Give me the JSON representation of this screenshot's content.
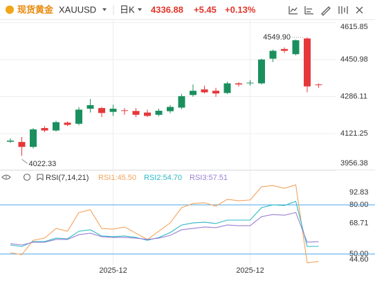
{
  "header": {
    "name": "现货黄金",
    "symbol": "XAUUSD",
    "period": "日K",
    "price": 4336.88,
    "change": "+5.45",
    "change_pct": "+0.13%"
  },
  "chart_data": [
    {
      "type": "candlestick",
      "categories": [
        null,
        null,
        null,
        null,
        null,
        null,
        null,
        null,
        null,
        "2025-12",
        null,
        null,
        null,
        null,
        null,
        null,
        null,
        null,
        null,
        null,
        null,
        "2025-12",
        null,
        null,
        null,
        null,
        null,
        null
      ],
      "open": [
        4085,
        4084,
        4062,
        4146,
        4135,
        4170,
        4165,
        4232,
        4235,
        4218,
        4225,
        4222,
        4215,
        4205,
        4221,
        4237,
        4293,
        4318,
        4312,
        4302,
        4345,
        4345,
        4345,
        4455,
        4498,
        4475,
        4545,
        4340
      ],
      "high": [
        4100,
        4106,
        4146,
        4155,
        4178,
        4175,
        4240,
        4275,
        4240,
        4250,
        4235,
        4235,
        4228,
        4232,
        4248,
        4298,
        4340,
        4335,
        4325,
        4352,
        4350,
        4360,
        4455,
        4495,
        4505,
        4540,
        4549.9,
        4345
      ],
      "low": [
        4080,
        4022.33,
        4055,
        4128,
        4130,
        4155,
        4158,
        4215,
        4195,
        4200,
        4205,
        4195,
        4195,
        4198,
        4212,
        4230,
        4285,
        4300,
        4285,
        4298,
        4330,
        4335,
        4340,
        4440,
        4480,
        4470,
        4305,
        4325
      ],
      "close": [
        4090,
        4062,
        4140,
        4135,
        4172,
        4160,
        4228,
        4248,
        4213,
        4232,
        4222,
        4205,
        4200,
        4223,
        4240,
        4288,
        4312,
        4305,
        4300,
        4345,
        4340,
        4348,
        4451,
        4490,
        4490,
        4537,
        4331.43,
        4336.88
      ],
      "up_color": "#1b8f5e",
      "down_color": "#e5383b",
      "ylim": [
        3956.38,
        4630
      ],
      "yticks": [
        4615.85,
        4450.98,
        4286.11,
        4121.25,
        3956.38
      ],
      "grid": true,
      "annotations": [
        {
          "text": "4549.90",
          "value": 4549.9,
          "kind": "high"
        },
        {
          "text": "4022.33",
          "value": 4022.33,
          "kind": "low"
        }
      ]
    },
    {
      "type": "line",
      "title": "RSI(7,14,21)",
      "categories": [
        null,
        null,
        null,
        null,
        null,
        null,
        null,
        null,
        null,
        "2025-12",
        null,
        null,
        null,
        null,
        null,
        null,
        null,
        null,
        null,
        null,
        null,
        "2025-12",
        null,
        null,
        null,
        null,
        null,
        null
      ],
      "series": [
        {
          "name": "RSI1:45.50",
          "color": "#f3a25b",
          "values": [
            50.8,
            49.6,
            58.4,
            59.7,
            65.6,
            63.9,
            75.3,
            77,
            65.6,
            65.2,
            66.5,
            62.7,
            58.9,
            63.9,
            69,
            78.3,
            80.8,
            81.3,
            79.2,
            83.4,
            82.5,
            83,
            91,
            91.8,
            90.1,
            92.2,
            44.6,
            45.5
          ]
        },
        {
          "name": "RSI2:54.70",
          "color": "#2bb8c6",
          "values": [
            55.5,
            54.6,
            57.6,
            57.6,
            59.7,
            59.3,
            63.9,
            64.8,
            61,
            60.6,
            61,
            60.1,
            58.4,
            60.1,
            63.1,
            67.7,
            69,
            69.4,
            68.6,
            70.7,
            70.7,
            70.7,
            78.3,
            80,
            79.6,
            82.1,
            54.6,
            54.7
          ]
        },
        {
          "name": "RSI3:57.51",
          "color": "#9a7fd2",
          "values": [
            56.3,
            55.5,
            57.2,
            57.2,
            58.9,
            58.9,
            61.8,
            62.7,
            60.6,
            60.1,
            60.1,
            59.7,
            58.9,
            59.7,
            61.4,
            64.8,
            65.6,
            66.5,
            66.1,
            67.7,
            67.3,
            67.3,
            72.8,
            74.1,
            73.7,
            75.3,
            57.2,
            57.51
          ]
        }
      ],
      "ylim": [
        44.6,
        92.83
      ],
      "yticks": [
        92.83,
        {
          "value": 80,
          "label": "80.00"
        },
        68.71,
        {
          "value": 50,
          "label": "50.00"
        },
        {
          "value": 44.6,
          "label": "44.60"
        }
      ],
      "hlines": [
        80,
        50
      ],
      "hline_color": "#4aa6e6"
    }
  ]
}
